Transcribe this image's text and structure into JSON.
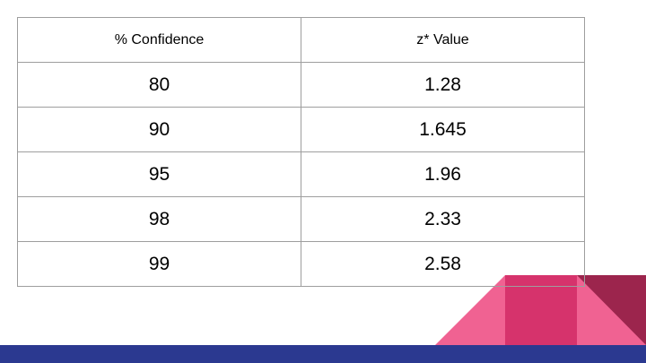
{
  "table": {
    "headers": [
      "% Confidence",
      "z* Value"
    ],
    "rows": [
      [
        "80",
        "1.28"
      ],
      [
        "90",
        "1.645"
      ],
      [
        "95",
        "1.96"
      ],
      [
        "98",
        "2.33"
      ],
      [
        "99",
        "2.58"
      ]
    ]
  },
  "colors": {
    "table_border": "#9e9e9e",
    "footer_bar": "#2b3990",
    "shape_pink": "#f06292",
    "shape_magenta": "#d6336c",
    "shape_maroon": "#9c254d"
  }
}
